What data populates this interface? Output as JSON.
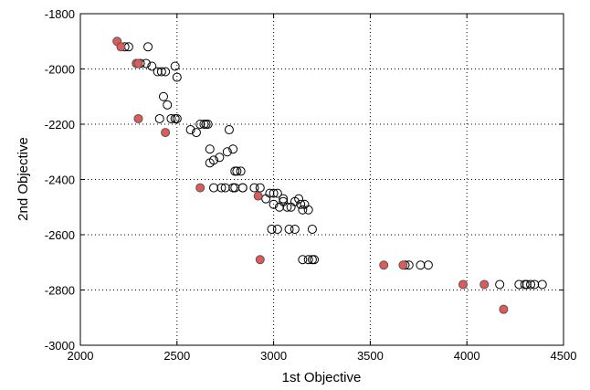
{
  "chart_data": {
    "type": "scatter",
    "title": "",
    "xlabel": "1st Objective",
    "ylabel": "2nd Objective",
    "xlim": [
      2000,
      4500
    ],
    "ylim": [
      -3000,
      -1800
    ],
    "xticks": [
      "2000",
      "2500",
      "3000",
      "3500",
      "4000",
      "4500"
    ],
    "yticks": [
      "-1800",
      "-2000",
      "-2200",
      "-2400",
      "-2600",
      "-2800",
      "-3000"
    ],
    "xtick_values": [
      2000,
      2500,
      3000,
      3500,
      4000,
      4500
    ],
    "ytick_values": [
      -1800,
      -2000,
      -2200,
      -2400,
      -2600,
      -2800,
      -3000
    ],
    "grid": true,
    "grid_style": "dotted",
    "colors": {
      "open_marker": "#000000",
      "highlight_fill": "#e05a5a"
    },
    "series": [
      {
        "marker": "open-circle",
        "x": [
          2230,
          2250,
          2290,
          2310,
          2350,
          2340,
          2370,
          2400,
          2420,
          2440,
          2490,
          2500,
          2410,
          2430,
          2450,
          2470,
          2490,
          2500,
          2570,
          2600,
          2620,
          2640,
          2650,
          2660,
          2670,
          2690,
          2720,
          2770,
          2760,
          2790,
          2810,
          2800,
          2830,
          2840,
          2670,
          2690,
          2730,
          2750,
          2790,
          2800,
          2840,
          2900,
          2930,
          2960,
          2980,
          3000,
          3020,
          3050,
          3000,
          3030,
          3050,
          3070,
          3090,
          3110,
          3130,
          3140,
          3160,
          3150,
          3180,
          2990,
          3020,
          3080,
          3110,
          3200,
          3150,
          3180,
          3200,
          3210,
          3680,
          3700,
          3760,
          3800,
          4170,
          4270,
          4300,
          4310,
          4330,
          4350,
          4390
        ],
        "y": [
          -1920,
          -1920,
          -1980,
          -1980,
          -1920,
          -1980,
          -1990,
          -2010,
          -2010,
          -2010,
          -1990,
          -2030,
          -2180,
          -2100,
          -2130,
          -2180,
          -2180,
          -2180,
          -2220,
          -2230,
          -2200,
          -2200,
          -2200,
          -2200,
          -2290,
          -2330,
          -2320,
          -2220,
          -2300,
          -2290,
          -2370,
          -2370,
          -2370,
          -2430,
          -2340,
          -2430,
          -2430,
          -2430,
          -2430,
          -2430,
          -2430,
          -2430,
          -2430,
          -2470,
          -2450,
          -2450,
          -2450,
          -2470,
          -2490,
          -2500,
          -2480,
          -2500,
          -2500,
          -2480,
          -2470,
          -2490,
          -2490,
          -2510,
          -2510,
          -2580,
          -2580,
          -2580,
          -2580,
          -2580,
          -2690,
          -2690,
          -2690,
          -2690,
          -2710,
          -2710,
          -2710,
          -2710,
          -2780,
          -2780,
          -2780,
          -2780,
          -2780,
          -2780,
          -2780
        ]
      },
      {
        "marker": "filled-circle-highlight",
        "x": [
          2190,
          2210,
          2290,
          2300,
          2300,
          2440,
          2620,
          2920,
          2930,
          3570,
          3670,
          3980,
          4090,
          4190
        ],
        "y": [
          -1900,
          -1920,
          -1980,
          -1980,
          -2180,
          -2230,
          -2430,
          -2460,
          -2690,
          -2710,
          -2710,
          -2780,
          -2780,
          -2870
        ]
      }
    ]
  }
}
